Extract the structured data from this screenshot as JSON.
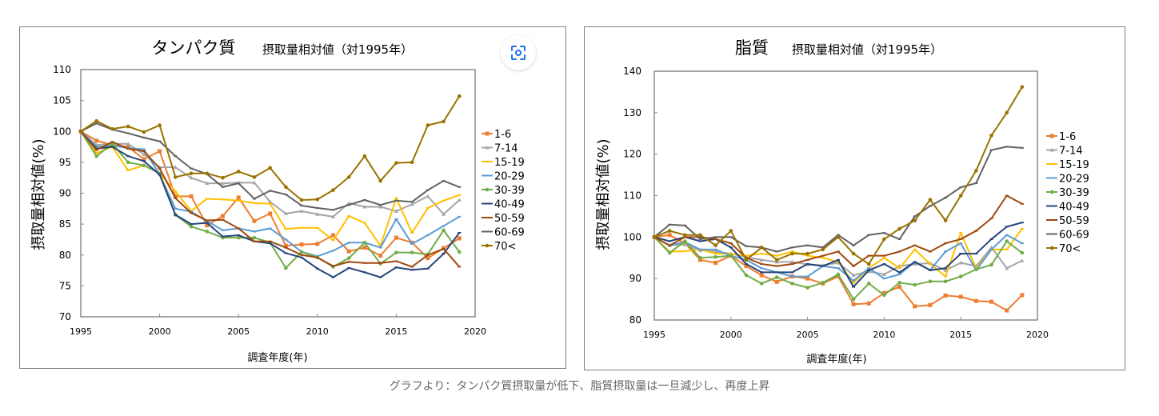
{
  "caption": "グラフより：タンパク質摂取量が低下、脂質摂取量は一旦減少し、再度上昇",
  "lens_button": {
    "icon": "visual-search-icon"
  },
  "chart_data": [
    {
      "type": "line",
      "title": "タンパク質",
      "subtitle": "摂取量相対値（対1995年）",
      "xlabel": "調査年度(年)",
      "ylabel": "摂取量相対値(%)",
      "xlim": [
        1995,
        2020
      ],
      "ylim": [
        70,
        110
      ],
      "xticks": [
        1995,
        2000,
        2005,
        2010,
        2015,
        2020
      ],
      "yticks": [
        70,
        75,
        80,
        85,
        90,
        95,
        100,
        105,
        110
      ],
      "grid": false,
      "legend": "right",
      "x": [
        1995,
        1996,
        1997,
        1998,
        1999,
        2000,
        2001,
        2002,
        2003,
        2004,
        2005,
        2006,
        2007,
        2008,
        2009,
        2010,
        2011,
        2012,
        2013,
        2014,
        2015,
        2016,
        2017,
        2018,
        2019
      ],
      "series": [
        {
          "name": "1-6",
          "color": "#ED7D31",
          "marker": "square",
          "values": [
            100,
            98.5,
            97.8,
            97.5,
            95.5,
            96.8,
            89.5,
            89.5,
            84.8,
            86.3,
            89.3,
            85.5,
            86.7,
            81.5,
            81.7,
            81.8,
            83.2,
            80.6,
            81.2,
            79.9,
            82.8,
            82.0,
            79.5,
            81.1,
            82.7
          ]
        },
        {
          "name": "7-14",
          "color": "#A5A5A5",
          "marker": "triangle",
          "values": [
            100,
            97.8,
            98.0,
            98.0,
            96.3,
            94.2,
            94.2,
            92.5,
            91.6,
            91.6,
            91.7,
            91.7,
            88.6,
            86.7,
            87.1,
            86.6,
            86.2,
            88.4,
            87.8,
            87.8,
            87.1,
            88.2,
            89.5,
            86.6,
            88.9
          ]
        },
        {
          "name": "15-19",
          "color": "#FFC000",
          "marker": "dash",
          "values": [
            100,
            96.5,
            97.5,
            93.7,
            94.5,
            93.2,
            90.3,
            87.1,
            89.1,
            89.0,
            88.8,
            88.4,
            88.3,
            84.2,
            84.4,
            84.4,
            82.4,
            86.3,
            85.2,
            81.5,
            89.2,
            83.6,
            87.6,
            88.8,
            89.7
          ]
        },
        {
          "name": "20-29",
          "color": "#5B9BD5",
          "marker": "dash",
          "values": [
            100,
            97.5,
            97.7,
            97.3,
            97.1,
            93.0,
            87.5,
            87.0,
            85.5,
            84.0,
            84.3,
            83.8,
            84.3,
            82.5,
            80.5,
            79.8,
            80.7,
            82.0,
            82.0,
            81.2,
            85.8,
            81.8,
            83.2,
            84.7,
            86.2
          ]
        },
        {
          "name": "30-39",
          "color": "#70AD47",
          "marker": "circle",
          "values": [
            100,
            96.0,
            98.0,
            95.0,
            94.5,
            93.2,
            86.5,
            84.6,
            83.8,
            82.8,
            82.8,
            82.8,
            82.0,
            77.9,
            80.5,
            79.6,
            78.1,
            79.5,
            82.0,
            78.6,
            80.4,
            80.4,
            80.1,
            84.0,
            80.5
          ]
        },
        {
          "name": "40-49",
          "color": "#264478",
          "marker": "dash",
          "values": [
            100,
            97.2,
            97.5,
            96.0,
            95.2,
            93.0,
            86.5,
            85.0,
            85.2,
            83.0,
            83.2,
            82.2,
            81.9,
            80.3,
            79.6,
            77.8,
            76.4,
            77.9,
            77.2,
            76.4,
            78.0,
            77.6,
            77.8,
            80.2,
            83.6
          ]
        },
        {
          "name": "50-59",
          "color": "#9E480E",
          "marker": "dash",
          "values": [
            100,
            97.0,
            98.3,
            97.2,
            96.8,
            94.0,
            89.2,
            86.8,
            85.6,
            85.7,
            84.3,
            82.2,
            82.2,
            81.2,
            80.0,
            79.6,
            78.2,
            78.9,
            78.7,
            78.7,
            79.0,
            78.1,
            80.0,
            81.0,
            78.1
          ]
        },
        {
          "name": "60-69",
          "color": "#636363",
          "marker": "dash",
          "values": [
            100,
            101.3,
            100.3,
            99.7,
            99.0,
            98.4,
            96.0,
            94.0,
            93.1,
            91.0,
            91.6,
            89.1,
            90.4,
            89.8,
            88.0,
            87.6,
            87.3,
            88.1,
            88.9,
            88.1,
            88.8,
            88.6,
            90.5,
            92.0,
            91.0
          ]
        },
        {
          "name": "70<",
          "color": "#997300",
          "marker": "circle",
          "values": [
            100,
            101.7,
            100.4,
            100.8,
            99.9,
            101.0,
            92.6,
            93.2,
            93.2,
            92.5,
            93.5,
            92.6,
            94.1,
            91.0,
            88.9,
            89.0,
            90.5,
            92.6,
            96.0,
            92.0,
            94.9,
            95.0,
            101.0,
            101.6,
            105.7
          ]
        }
      ]
    },
    {
      "type": "line",
      "title": "脂質",
      "subtitle": "摂取量相対値（対1995年）",
      "xlabel": "調査年度(年)",
      "ylabel": "摂取量相対値(%)",
      "xlim": [
        1995,
        2020
      ],
      "ylim": [
        80,
        140
      ],
      "xticks": [
        1995,
        2000,
        2005,
        2010,
        2015,
        2020
      ],
      "yticks": [
        80,
        90,
        100,
        110,
        120,
        130,
        140
      ],
      "grid": false,
      "legend": "right",
      "x": [
        1995,
        1996,
        1997,
        1998,
        1999,
        2000,
        2001,
        2002,
        2003,
        2004,
        2005,
        2006,
        2007,
        2008,
        2009,
        2010,
        2011,
        2012,
        2013,
        2014,
        2015,
        2016,
        2017,
        2018,
        2019
      ],
      "series": [
        {
          "name": "1-6",
          "color": "#ED7D31",
          "marker": "square",
          "values": [
            100,
            100.5,
            98.5,
            94.5,
            93.8,
            95.5,
            93.0,
            90.8,
            89.2,
            90.5,
            90.0,
            88.8,
            90.5,
            83.8,
            84.0,
            86.5,
            88.0,
            83.3,
            83.6,
            85.9,
            85.6,
            84.6,
            84.4,
            82.3,
            86.0
          ]
        },
        {
          "name": "7-14",
          "color": "#A5A5A5",
          "marker": "triangle",
          "values": [
            100,
            98.0,
            98.2,
            96.8,
            96.5,
            96.0,
            95.2,
            94.5,
            94.0,
            94.0,
            93.4,
            93.2,
            93.8,
            90.8,
            91.7,
            91.0,
            93.0,
            93.5,
            93.7,
            92.0,
            93.8,
            93.0,
            97.5,
            92.5,
            94.3
          ]
        },
        {
          "name": "15-19",
          "color": "#FFC000",
          "marker": "dash",
          "values": [
            100,
            96.5,
            96.6,
            97.0,
            96.0,
            96.0,
            95.5,
            96.0,
            95.5,
            96.5,
            95.5,
            95.0,
            94.0,
            89.0,
            92.5,
            95.0,
            92.5,
            97.0,
            93.5,
            90.5,
            101.0,
            92.5,
            97.0,
            97.0,
            102.0
          ]
        },
        {
          "name": "20-29",
          "color": "#5B9BD5",
          "marker": "dash",
          "values": [
            100,
            98.0,
            98.8,
            97.0,
            97.0,
            95.5,
            94.5,
            92.5,
            91.5,
            90.5,
            90.5,
            93.0,
            92.5,
            89.5,
            92.5,
            90.0,
            91.0,
            94.0,
            92.0,
            96.5,
            98.5,
            92.0,
            97.0,
            100.5,
            98.5
          ]
        },
        {
          "name": "30-39",
          "color": "#70AD47",
          "marker": "circle",
          "values": [
            100,
            96.2,
            99.0,
            95.0,
            95.2,
            95.5,
            90.8,
            88.8,
            90.3,
            88.8,
            87.8,
            89.0,
            91.0,
            85.0,
            88.8,
            86.0,
            89.0,
            88.5,
            89.3,
            89.3,
            90.5,
            92.2,
            93.3,
            99.0,
            96.2
          ]
        },
        {
          "name": "40-49",
          "color": "#264478",
          "marker": "dash",
          "values": [
            100,
            99.0,
            100.0,
            99.0,
            99.5,
            97.5,
            93.5,
            91.5,
            91.5,
            91.5,
            93.5,
            93.0,
            94.5,
            88.0,
            92.0,
            93.5,
            91.5,
            94.0,
            92.0,
            92.5,
            96.0,
            96.0,
            99.5,
            102.5,
            103.5
          ]
        },
        {
          "name": "50-59",
          "color": "#9E480E",
          "marker": "dash",
          "values": [
            100,
            98.0,
            100.0,
            100.0,
            99.5,
            98.5,
            95.0,
            93.5,
            93.0,
            93.5,
            94.5,
            95.5,
            96.5,
            93.0,
            95.5,
            95.5,
            96.5,
            98.0,
            96.5,
            98.5,
            99.5,
            101.5,
            104.5,
            110.0,
            108.0
          ]
        },
        {
          "name": "60-69",
          "color": "#636363",
          "marker": "dash",
          "values": [
            100,
            103.0,
            102.8,
            99.5,
            100.0,
            100.0,
            97.8,
            97.5,
            96.5,
            97.5,
            98.0,
            97.5,
            100.5,
            98.0,
            100.5,
            101.0,
            99.5,
            105.0,
            107.5,
            109.5,
            112.0,
            113.0,
            121.0,
            121.8,
            121.5
          ]
        },
        {
          "name": "70<",
          "color": "#997300",
          "marker": "circle",
          "values": [
            100,
            101.5,
            100.5,
            100.5,
            98.0,
            101.5,
            94.5,
            97.5,
            94.5,
            96.0,
            96.0,
            97.0,
            100.0,
            96.0,
            93.5,
            99.5,
            102.0,
            104.0,
            109.0,
            104.0,
            110.0,
            116.0,
            124.5,
            130.0,
            136.2
          ]
        }
      ]
    }
  ]
}
